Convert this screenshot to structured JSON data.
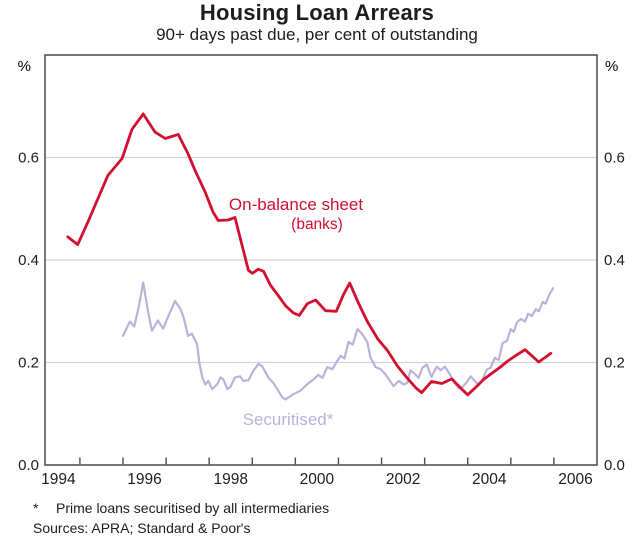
{
  "title": "Housing Loan Arrears",
  "subtitle": "90+ days past due, per cent of outstanding",
  "footnote": {
    "marker": "*",
    "text": "Prime loans securitised by all intermediaries"
  },
  "sources": "Sources: APRA; Standard & Poor's",
  "colors": {
    "red_series": "#d20f2f",
    "purple_series": "#b7b3da",
    "gridline": "#cdd3d8",
    "frame": "#4a4a4c",
    "text": "#1d1d1f"
  },
  "chart_data": {
    "type": "line",
    "title": "Housing Loan Arrears",
    "subtitle": "90+ days past due, per cent of outstanding",
    "grid": true,
    "legend_position": "inline-labels",
    "x_axis": {
      "min": 1994.19,
      "max": 2007.0,
      "tick_years": [
        1995,
        1996,
        1997,
        1998,
        1999,
        2000,
        2001,
        2002,
        2003,
        2004,
        2005,
        2006
      ],
      "labels": [
        "1994",
        "1996",
        "1998",
        "2000",
        "2002",
        "2004",
        "2006"
      ],
      "label_center_offset": 0.5
    },
    "y_axis": {
      "unit": "%",
      "min": 0,
      "max": 0.8,
      "gridlines": [
        0.2,
        0.4,
        0.6
      ],
      "ticks": [
        {
          "value": 0,
          "label": "0.0"
        },
        {
          "value": 0.2,
          "label": "0.2"
        },
        {
          "value": 0.4,
          "label": "0.4"
        },
        {
          "value": 0.6,
          "label": "0.6"
        }
      ]
    },
    "series": [
      {
        "name": "On-balance sheet (banks)",
        "label_line1": "On-balance sheet",
        "label_line2": "(banks)",
        "color": "#d20f2f",
        "stroke_width": 2.8,
        "points": [
          [
            1994.72,
            0.445
          ],
          [
            1994.95,
            0.43
          ],
          [
            1995.19,
            0.475
          ],
          [
            1995.42,
            0.52
          ],
          [
            1995.65,
            0.565
          ],
          [
            1995.98,
            0.598
          ],
          [
            1996.21,
            0.655
          ],
          [
            1996.47,
            0.685
          ],
          [
            1996.74,
            0.65
          ],
          [
            1996.98,
            0.637
          ],
          [
            1997.28,
            0.645
          ],
          [
            1997.51,
            0.607
          ],
          [
            1997.67,
            0.575
          ],
          [
            1997.91,
            0.532
          ],
          [
            1998.09,
            0.493
          ],
          [
            1998.21,
            0.477
          ],
          [
            1998.44,
            0.478
          ],
          [
            1998.6,
            0.483
          ],
          [
            1998.79,
            0.42
          ],
          [
            1998.91,
            0.38
          ],
          [
            1999.0,
            0.374
          ],
          [
            1999.14,
            0.382
          ],
          [
            1999.26,
            0.378
          ],
          [
            1999.42,
            0.351
          ],
          [
            1999.6,
            0.331
          ],
          [
            1999.77,
            0.311
          ],
          [
            1999.95,
            0.297
          ],
          [
            2000.09,
            0.292
          ],
          [
            2000.28,
            0.315
          ],
          [
            2000.47,
            0.322
          ],
          [
            2000.7,
            0.301
          ],
          [
            2000.95,
            0.3
          ],
          [
            2001.12,
            0.333
          ],
          [
            2001.26,
            0.355
          ],
          [
            2001.47,
            0.315
          ],
          [
            2001.67,
            0.28
          ],
          [
            2001.91,
            0.246
          ],
          [
            2002.14,
            0.223
          ],
          [
            2002.37,
            0.193
          ],
          [
            2002.56,
            0.173
          ],
          [
            2002.79,
            0.151
          ],
          [
            2002.93,
            0.141
          ],
          [
            2003.16,
            0.163
          ],
          [
            2003.4,
            0.159
          ],
          [
            2003.63,
            0.168
          ],
          [
            2003.86,
            0.148
          ],
          [
            2004.0,
            0.137
          ],
          [
            2004.19,
            0.152
          ],
          [
            2004.37,
            0.167
          ],
          [
            2004.56,
            0.179
          ],
          [
            2004.74,
            0.19
          ],
          [
            2004.93,
            0.203
          ],
          [
            2005.14,
            0.215
          ],
          [
            2005.33,
            0.225
          ],
          [
            2005.65,
            0.201
          ],
          [
            2005.93,
            0.218
          ]
        ]
      },
      {
        "name": "Securitised",
        "label": "Securitised*",
        "color": "#b7b3da",
        "stroke_width": 2.2,
        "points": [
          [
            1996.0,
            0.252
          ],
          [
            1996.09,
            0.268
          ],
          [
            1996.16,
            0.28
          ],
          [
            1996.26,
            0.27
          ],
          [
            1996.37,
            0.31
          ],
          [
            1996.47,
            0.356
          ],
          [
            1996.58,
            0.3
          ],
          [
            1996.67,
            0.262
          ],
          [
            1996.81,
            0.282
          ],
          [
            1996.93,
            0.266
          ],
          [
            1997.05,
            0.29
          ],
          [
            1997.21,
            0.32
          ],
          [
            1997.33,
            0.305
          ],
          [
            1997.4,
            0.29
          ],
          [
            1997.51,
            0.252
          ],
          [
            1997.6,
            0.256
          ],
          [
            1997.72,
            0.236
          ],
          [
            1997.77,
            0.2
          ],
          [
            1997.84,
            0.171
          ],
          [
            1997.91,
            0.157
          ],
          [
            1997.98,
            0.164
          ],
          [
            1998.07,
            0.148
          ],
          [
            1998.19,
            0.158
          ],
          [
            1998.26,
            0.171
          ],
          [
            1998.33,
            0.167
          ],
          [
            1998.42,
            0.148
          ],
          [
            1998.49,
            0.152
          ],
          [
            1998.6,
            0.171
          ],
          [
            1998.72,
            0.173
          ],
          [
            1998.79,
            0.164
          ],
          [
            1998.91,
            0.165
          ],
          [
            1999.02,
            0.183
          ],
          [
            1999.14,
            0.197
          ],
          [
            1999.23,
            0.193
          ],
          [
            1999.37,
            0.171
          ],
          [
            1999.49,
            0.16
          ],
          [
            1999.7,
            0.132
          ],
          [
            1999.77,
            0.128
          ],
          [
            1999.95,
            0.138
          ],
          [
            2000.12,
            0.145
          ],
          [
            2000.28,
            0.158
          ],
          [
            2000.42,
            0.167
          ],
          [
            2000.53,
            0.176
          ],
          [
            2000.63,
            0.17
          ],
          [
            2000.74,
            0.191
          ],
          [
            2000.86,
            0.187
          ],
          [
            2000.95,
            0.2
          ],
          [
            2001.05,
            0.213
          ],
          [
            2001.14,
            0.208
          ],
          [
            2001.23,
            0.24
          ],
          [
            2001.33,
            0.235
          ],
          [
            2001.44,
            0.265
          ],
          [
            2001.53,
            0.258
          ],
          [
            2001.67,
            0.24
          ],
          [
            2001.74,
            0.211
          ],
          [
            2001.86,
            0.191
          ],
          [
            2001.98,
            0.187
          ],
          [
            2002.09,
            0.177
          ],
          [
            2002.28,
            0.154
          ],
          [
            2002.4,
            0.164
          ],
          [
            2002.51,
            0.157
          ],
          [
            2002.6,
            0.16
          ],
          [
            2002.67,
            0.185
          ],
          [
            2002.77,
            0.178
          ],
          [
            2002.86,
            0.17
          ],
          [
            2002.95,
            0.19
          ],
          [
            2003.05,
            0.196
          ],
          [
            2003.16,
            0.172
          ],
          [
            2003.28,
            0.192
          ],
          [
            2003.37,
            0.185
          ],
          [
            2003.47,
            0.192
          ],
          [
            2003.58,
            0.178
          ],
          [
            2003.67,
            0.163
          ],
          [
            2003.79,
            0.15
          ],
          [
            2003.88,
            0.152
          ],
          [
            2003.98,
            0.162
          ],
          [
            2004.07,
            0.173
          ],
          [
            2004.16,
            0.164
          ],
          [
            2004.26,
            0.156
          ],
          [
            2004.35,
            0.168
          ],
          [
            2004.44,
            0.186
          ],
          [
            2004.53,
            0.19
          ],
          [
            2004.63,
            0.209
          ],
          [
            2004.72,
            0.205
          ],
          [
            2004.81,
            0.238
          ],
          [
            2004.91,
            0.242
          ],
          [
            2005.0,
            0.265
          ],
          [
            2005.07,
            0.26
          ],
          [
            2005.14,
            0.278
          ],
          [
            2005.23,
            0.285
          ],
          [
            2005.33,
            0.28
          ],
          [
            2005.4,
            0.295
          ],
          [
            2005.49,
            0.291
          ],
          [
            2005.58,
            0.304
          ],
          [
            2005.65,
            0.3
          ],
          [
            2005.74,
            0.318
          ],
          [
            2005.81,
            0.315
          ],
          [
            2005.88,
            0.33
          ],
          [
            2005.98,
            0.345
          ]
        ]
      }
    ]
  }
}
